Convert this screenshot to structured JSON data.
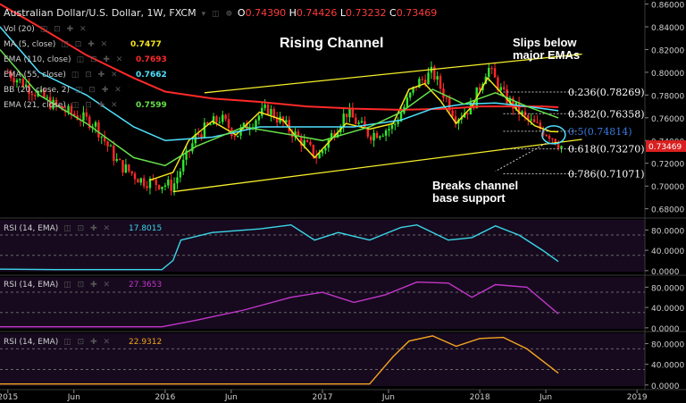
{
  "header": {
    "symbol": "Australian Dollar/U.S. Dollar, 1W, FXCM",
    "open_label": "O",
    "open": "0.74390",
    "high_label": "H",
    "high": "0.74426",
    "low_label": "L",
    "low": "0.73232",
    "close_label": "C",
    "close": "0.73469"
  },
  "indicators": [
    {
      "label": "Vol (20)",
      "value": "",
      "color": "#cccccc"
    },
    {
      "label": "MA (5, close)",
      "value": "0.7477",
      "color": "#f5e51b"
    },
    {
      "label": "EMA (110, close)",
      "value": "0.7693",
      "color": "#ff2a2a"
    },
    {
      "label": "EMA (55, close)",
      "value": "0.7662",
      "color": "#4fe2ff"
    },
    {
      "label": "BB (20, close, 2)",
      "value": "",
      "color": "#cccccc"
    },
    {
      "label": "EMA (21, close)",
      "value": "0.7599",
      "color": "#66e04a"
    }
  ],
  "annotations": {
    "rising_channel": "Rising Channel",
    "slips_line1": "Slips below",
    "slips_line2": "major EMAs",
    "breaks_line1": "Breaks channel",
    "breaks_line2": "base support"
  },
  "fib_levels": [
    {
      "label": "0.236(0.78269)",
      "value": 0.78269,
      "color": "#ffffff"
    },
    {
      "label": "0.382(0.76358)",
      "value": 0.76358,
      "color": "#ffffff"
    },
    {
      "label": "0.5(0.74814)",
      "value": 0.74814,
      "color": "#3a7ae0"
    },
    {
      "label": "0.618(0.73270)",
      "value": 0.7327,
      "color": "#ffffff"
    },
    {
      "label": "0.786(0.71071)",
      "value": 0.71071,
      "color": "#ffffff"
    }
  ],
  "price_tag": "0.73469",
  "rsi_panels": [
    {
      "label": "RSI (14, EMA)",
      "value": "17.8015",
      "color": "#3ad7e8"
    },
    {
      "label": "RSI (14, EMA)",
      "value": "27.3653",
      "color": "#c236c8"
    },
    {
      "label": "RSI (14, EMA)",
      "value": "22.9312",
      "color": "#f2a41e"
    }
  ],
  "chart_data": {
    "type": "line",
    "title": "Australian Dollar/U.S. Dollar, 1W, FXCM",
    "x_ticks": [
      "2015",
      "Jun",
      "2016",
      "Jun",
      "2017",
      "Jun",
      "2018",
      "Jun",
      "2019"
    ],
    "x_tick_pos": [
      2015.0,
      2015.42,
      2016.0,
      2016.42,
      2017.0,
      2017.42,
      2018.0,
      2018.42,
      2019.0
    ],
    "xlim": [
      2014.95,
      2019.05
    ],
    "y_ticks": [
      "0.68000",
      "0.70000",
      "0.72000",
      "0.74000",
      "0.76000",
      "0.78000",
      "0.80000",
      "0.82000",
      "0.84000",
      "0.86000"
    ],
    "ylim": [
      0.675,
      0.862
    ],
    "rsi_ticks": [
      "0.0000",
      "40.0000",
      "80.0000"
    ],
    "rsi_ylim": [
      -2,
      100
    ],
    "series": [
      {
        "name": "MA (5, close)",
        "color": "#f5e51b",
        "x": [
          2015.9,
          2016.05,
          2016.15,
          2016.3,
          2016.45,
          2016.6,
          2016.75,
          2016.85,
          2016.95,
          2017.05,
          2017.15,
          2017.3,
          2017.45,
          2017.55,
          2017.65,
          2017.75,
          2017.85,
          2017.95,
          2018.05,
          2018.15,
          2018.25,
          2018.35,
          2018.45,
          2018.5
        ],
        "y": [
          0.705,
          0.712,
          0.74,
          0.757,
          0.745,
          0.765,
          0.758,
          0.74,
          0.725,
          0.74,
          0.755,
          0.75,
          0.755,
          0.785,
          0.79,
          0.775,
          0.755,
          0.77,
          0.795,
          0.78,
          0.765,
          0.753,
          0.748,
          0.7477
        ]
      },
      {
        "name": "EMA (110, close)",
        "color": "#ff2a2a",
        "x": [
          2014.95,
          2015.2,
          2015.5,
          2015.8,
          2016.0,
          2016.3,
          2016.6,
          2016.9,
          2017.2,
          2017.5,
          2017.8,
          2018.0,
          2018.2,
          2018.4,
          2018.5
        ],
        "y": [
          0.86,
          0.84,
          0.815,
          0.795,
          0.783,
          0.777,
          0.774,
          0.77,
          0.768,
          0.767,
          0.768,
          0.77,
          0.77,
          0.77,
          0.7693
        ]
      },
      {
        "name": "EMA (55, close)",
        "color": "#4fe2ff",
        "x": [
          2014.95,
          2015.2,
          2015.5,
          2015.8,
          2016.0,
          2016.3,
          2016.6,
          2016.9,
          2017.2,
          2017.5,
          2017.7,
          2017.9,
          2018.1,
          2018.3,
          2018.5
        ],
        "y": [
          0.84,
          0.8,
          0.78,
          0.752,
          0.74,
          0.743,
          0.752,
          0.752,
          0.752,
          0.758,
          0.768,
          0.772,
          0.773,
          0.77,
          0.7662
        ]
      },
      {
        "name": "EMA (21, close)",
        "color": "#66e04a",
        "x": [
          2014.95,
          2015.2,
          2015.5,
          2015.8,
          2016.0,
          2016.2,
          2016.5,
          2016.8,
          2017.0,
          2017.3,
          2017.5,
          2017.7,
          2017.9,
          2018.1,
          2018.3,
          2018.5
        ],
        "y": [
          0.82,
          0.78,
          0.755,
          0.725,
          0.718,
          0.735,
          0.752,
          0.745,
          0.74,
          0.752,
          0.765,
          0.785,
          0.772,
          0.782,
          0.77,
          0.7599
        ]
      }
    ],
    "channel": [
      {
        "x": [
          2016.25,
          2018.65
        ],
        "y": [
          0.782,
          0.816
        ]
      },
      {
        "x": [
          2016.05,
          2018.65
        ],
        "y": [
          0.695,
          0.741
        ]
      }
    ],
    "rsi_series": [
      {
        "name": "RSI (14, EMA)",
        "color": "#3ad7e8",
        "x": [
          2014.95,
          2015.3,
          2015.7,
          2015.98,
          2016.05,
          2016.1,
          2016.3,
          2016.6,
          2016.8,
          2016.95,
          2017.1,
          2017.3,
          2017.5,
          2017.6,
          2017.8,
          2017.95,
          2018.1,
          2018.25,
          2018.4,
          2018.5
        ],
        "y": [
          3,
          2,
          2,
          2,
          20,
          60,
          75,
          82,
          90,
          60,
          75,
          60,
          85,
          90,
          60,
          65,
          88,
          70,
          40,
          17.8
        ]
      },
      {
        "name": "RSI (14, EMA)",
        "color": "#c236c8",
        "x": [
          2014.95,
          2015.5,
          2015.98,
          2016.2,
          2016.5,
          2016.8,
          2017.0,
          2017.2,
          2017.4,
          2017.6,
          2017.8,
          2017.95,
          2018.1,
          2018.3,
          2018.5
        ],
        "y": [
          2,
          2,
          2,
          15,
          35,
          60,
          70,
          50,
          65,
          90,
          88,
          60,
          85,
          80,
          27.4
        ]
      },
      {
        "name": "RSI (14, EMA)",
        "color": "#f2a41e",
        "x": [
          2014.95,
          2015.5,
          2016.0,
          2016.5,
          2017.0,
          2017.3,
          2017.45,
          2017.55,
          2017.7,
          2017.85,
          2018.0,
          2018.15,
          2018.3,
          2018.5
        ],
        "y": [
          2,
          2,
          2,
          2,
          2,
          2,
          55,
          85,
          95,
          75,
          90,
          92,
          70,
          22.9
        ]
      }
    ]
  }
}
